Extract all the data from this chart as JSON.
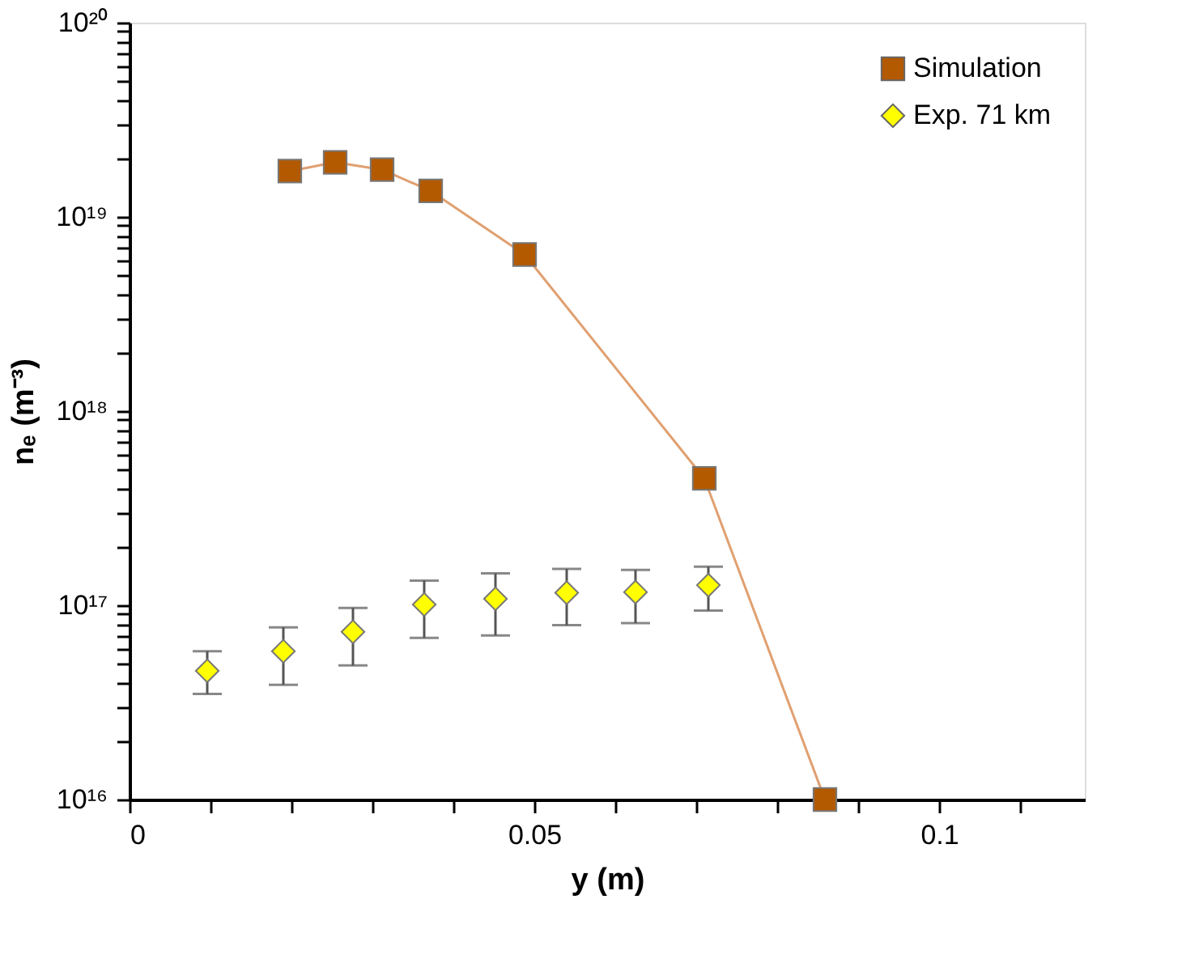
{
  "chart_data": {
    "type": "line",
    "xlabel": "y (m)",
    "ylabel": "nₑ (m⁻³)",
    "log": "y",
    "xlim": [
      0,
      0.118
    ],
    "xticks": [
      0,
      {
        "value": 0.01,
        "label": null
      },
      {
        "value": 0.02,
        "label": null
      },
      {
        "value": 0.03,
        "label": null
      },
      {
        "value": 0.04,
        "label": null
      },
      0.05,
      {
        "value": 0.06,
        "label": null
      },
      {
        "value": 0.07,
        "label": null
      },
      {
        "value": 0.08,
        "label": null
      },
      {
        "value": 0.09,
        "label": null
      },
      0.1,
      {
        "value": 0.11,
        "label": null
      }
    ],
    "ylim": [
      1e+16,
      1e+20
    ],
    "yticks": [
      {
        "value": 1e+16,
        "label": "10¹⁶"
      },
      {
        "value": 2e+16,
        "label": null
      },
      {
        "value": 3e+16,
        "label": null
      },
      {
        "value": 4e+16,
        "label": null
      },
      {
        "value": 5e+16,
        "label": null
      },
      {
        "value": 6e+16,
        "label": null
      },
      {
        "value": 7e+16,
        "label": null
      },
      {
        "value": 8e+16,
        "label": null
      },
      {
        "value": 9e+16,
        "label": null
      },
      {
        "value": 1e+17,
        "label": "10¹⁷"
      },
      {
        "value": 2e+17,
        "label": null
      },
      {
        "value": 3e+17,
        "label": null
      },
      {
        "value": 4e+17,
        "label": null
      },
      {
        "value": 5e+17,
        "label": null
      },
      {
        "value": 6e+17,
        "label": null
      },
      {
        "value": 7e+17,
        "label": null
      },
      {
        "value": 8e+17,
        "label": null
      },
      {
        "value": 9e+17,
        "label": null
      },
      {
        "value": 1e+18,
        "label": "10¹⁸"
      },
      {
        "value": 2e+18,
        "label": null
      },
      {
        "value": 3e+18,
        "label": null
      },
      {
        "value": 4e+18,
        "label": null
      },
      {
        "value": 5e+18,
        "label": null
      },
      {
        "value": 6e+18,
        "label": null
      },
      {
        "value": 7e+18,
        "label": null
      },
      {
        "value": 8e+18,
        "label": null
      },
      {
        "value": 9e+18,
        "label": null
      },
      {
        "value": 1e+19,
        "label": "10¹⁹"
      },
      {
        "value": 2e+19,
        "label": null
      },
      {
        "value": 3e+19,
        "label": null
      },
      {
        "value": 4e+19,
        "label": null
      },
      {
        "value": 5e+19,
        "label": null
      },
      {
        "value": 6e+19,
        "label": null
      },
      {
        "value": 7e+19,
        "label": null
      },
      {
        "value": 8e+19,
        "label": null
      },
      {
        "value": 9e+19,
        "label": null
      },
      {
        "value": 1e+20,
        "label": "10²⁰"
      }
    ],
    "grid": false,
    "legend": "top right",
    "series": [
      {
        "name": "Simulation",
        "marker": "square",
        "line_style": "solid",
        "color": "#b35900",
        "x": [
          0.0198,
          0.0254,
          0.0312,
          0.0372,
          0.0488,
          0.071,
          0.0859
        ],
        "values": [
          1.72e+19,
          1.91e+19,
          1.75e+19,
          1.36e+19,
          6.4e+18,
          4.5e+17,
          1e+16
        ]
      },
      {
        "name": "Exp. 71 km",
        "type": "scatter",
        "marker": "diamond",
        "color": "#ffff00",
        "x": [
          0.0096,
          0.019,
          0.0276,
          0.0364,
          0.0452,
          0.054,
          0.0625,
          0.0715
        ],
        "values": [
          4.6e+16,
          5.8e+16,
          7.3e+16,
          1.01e+17,
          1.08e+17,
          1.16e+17,
          1.17e+17,
          1.27e+17
        ],
        "errors": [
          [
            3.5e+16,
            5.8e+16
          ],
          [
            3.9e+16,
            7.7e+16
          ],
          [
            4.9e+16,
            9.7e+16
          ],
          [
            6.8e+16,
            1.34e+17
          ],
          [
            7e+16,
            1.46e+17
          ],
          [
            7.9e+16,
            1.54e+17
          ],
          [
            8.1e+16,
            1.52e+17
          ],
          [
            9.4e+16,
            1.58e+17
          ]
        ]
      }
    ]
  }
}
